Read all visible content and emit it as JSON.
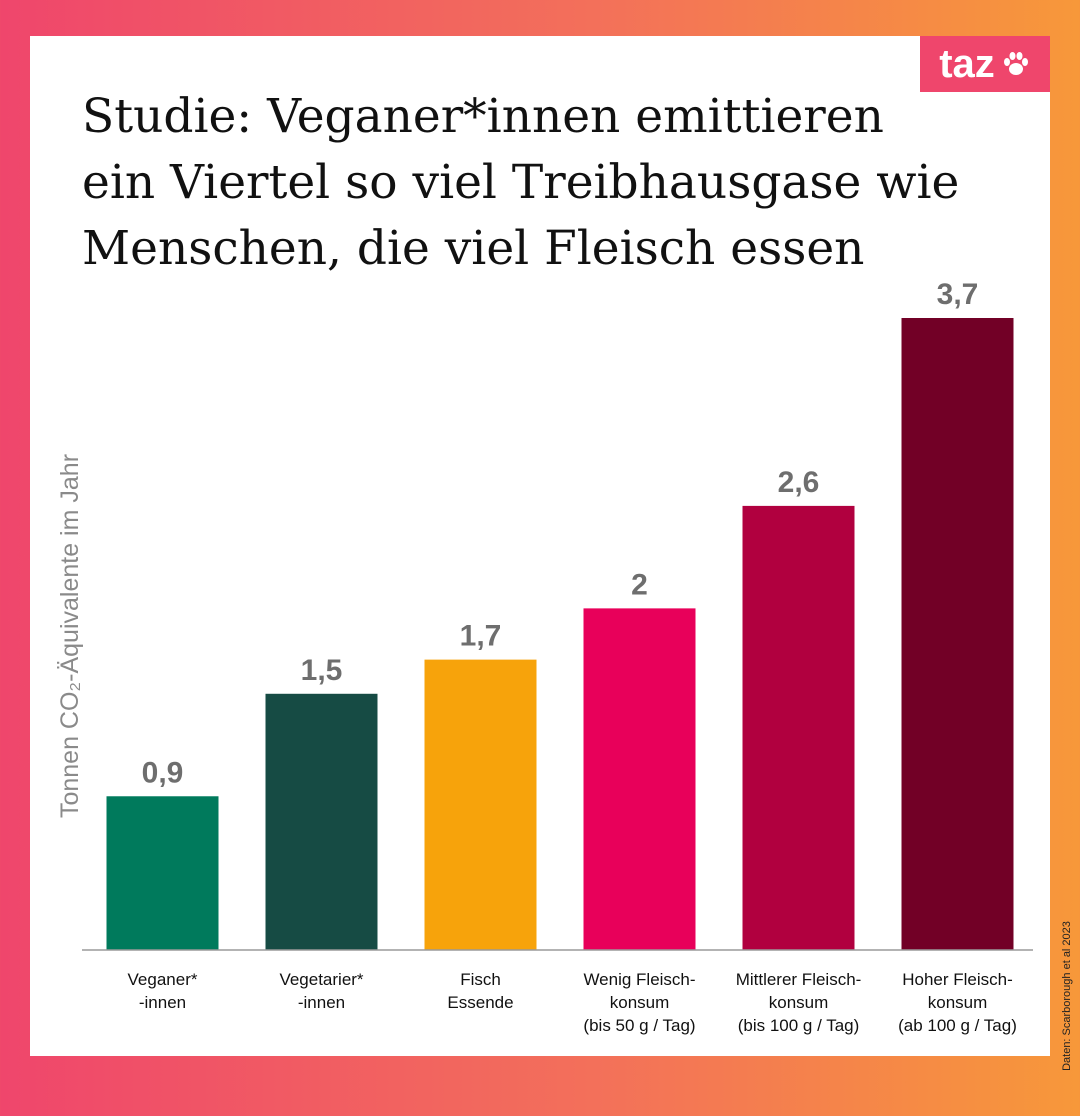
{
  "brand": {
    "logo_text": "taz",
    "logo_color": "#ef466c"
  },
  "chart_data": {
    "type": "bar",
    "title": "Studie: Veganer*innen emittieren ein Viertel so viel Treibhausgase wie Menschen, die viel Fleisch essen",
    "ylabel": "Tonnen CO₂-Äquivalente im Jahr",
    "source": "Daten: Scarborough et al 2023",
    "ylim": [
      0,
      3.7
    ],
    "grid": false,
    "legend": "none",
    "categories": [
      [
        "Veganer*",
        "-innen"
      ],
      [
        "Vegetarier*",
        "-innen"
      ],
      [
        "Fisch",
        "Essende"
      ],
      [
        "Wenig Fleisch-",
        "konsum",
        "(bis 50 g / Tag)"
      ],
      [
        "Mittlerer Fleisch-",
        "konsum",
        "(bis 100 g / Tag)"
      ],
      [
        "Hoher Fleisch-",
        "konsum",
        "(ab 100 g / Tag)"
      ]
    ],
    "values": [
      0.9,
      1.5,
      1.7,
      2,
      2.6,
      3.7
    ],
    "value_labels": [
      "0,9",
      "1,5",
      "1,7",
      "2",
      "2,6",
      "3,7"
    ],
    "colors": [
      "#007a5c",
      "#164b44",
      "#f7a30b",
      "#e8005a",
      "#b1003f",
      "#720026"
    ]
  }
}
